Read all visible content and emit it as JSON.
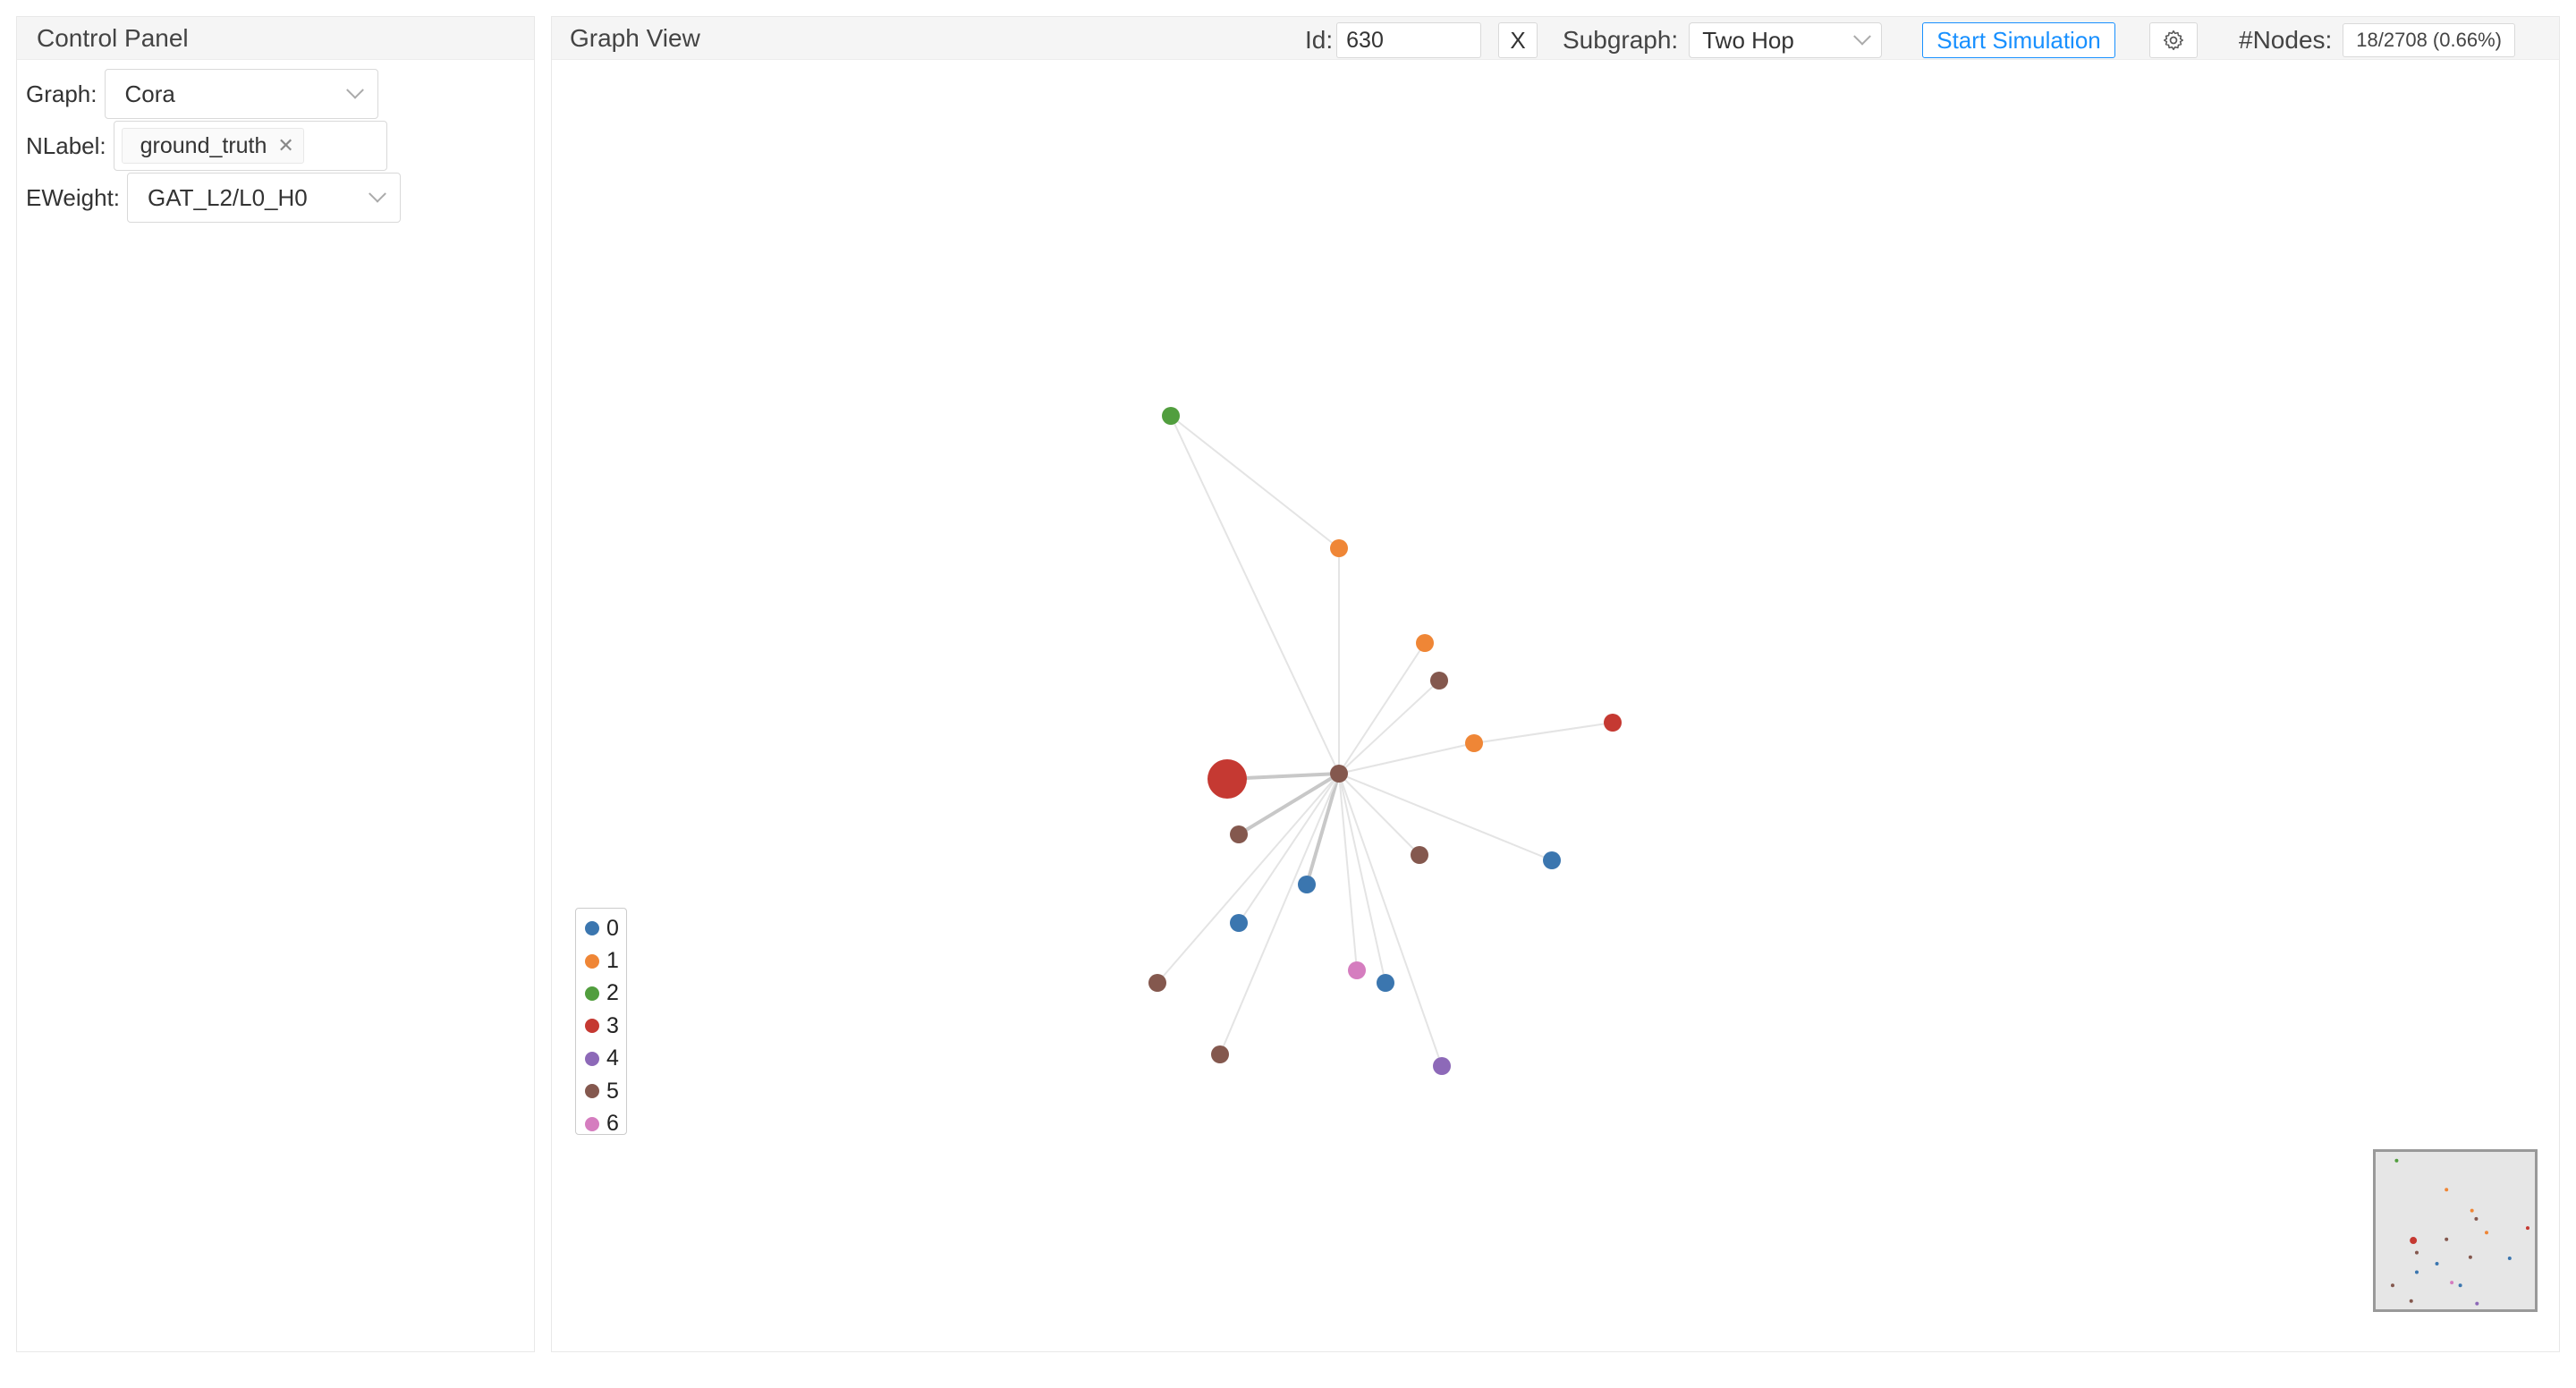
{
  "control_panel": {
    "title": "Control Panel",
    "graph_label": "Graph:",
    "graph_value": "Cora",
    "nlabel_label": "NLabel:",
    "nlabel_tag": "ground_truth",
    "eweight_label": "EWeight:",
    "eweight_value": "GAT_L2/L0_H0"
  },
  "graph_view": {
    "title": "Graph View",
    "id_label": "Id:",
    "id_value": "630",
    "clear_label": "X",
    "subgraph_label": "Subgraph:",
    "subgraph_value": "Two Hop",
    "simulation_label": "Start Simulation",
    "settings_icon": "gear-icon",
    "nodes_label": "#Nodes:",
    "nodes_value": "18/2708 (0.66%)"
  },
  "legend": [
    {
      "label": "0",
      "color": "#3b76af"
    },
    {
      "label": "1",
      "color": "#ef8636"
    },
    {
      "label": "2",
      "color": "#519e3e"
    },
    {
      "label": "3",
      "color": "#c53932"
    },
    {
      "label": "4",
      "color": "#8d69b8"
    },
    {
      "label": "5",
      "color": "#84584e"
    },
    {
      "label": "6",
      "color": "#d57dbf"
    }
  ],
  "graph": {
    "nodes": [
      {
        "id": "center",
        "label": 5
      },
      {
        "id": "n1",
        "label": 3,
        "big": true
      },
      {
        "id": "n2",
        "label": 2
      },
      {
        "id": "n3",
        "label": 1
      },
      {
        "id": "n4",
        "label": 1
      },
      {
        "id": "n5",
        "label": 5
      },
      {
        "id": "n6",
        "label": 1
      },
      {
        "id": "n7",
        "label": 3
      },
      {
        "id": "n8",
        "label": 5
      },
      {
        "id": "n9",
        "label": 5
      },
      {
        "id": "n10",
        "label": 0
      },
      {
        "id": "n11",
        "label": 0
      },
      {
        "id": "n12",
        "label": 0
      },
      {
        "id": "n13",
        "label": 5
      },
      {
        "id": "n14",
        "label": 6
      },
      {
        "id": "n15",
        "label": 0
      },
      {
        "id": "n16",
        "label": 5
      },
      {
        "id": "n17",
        "label": 4
      }
    ],
    "edges": [
      [
        "center",
        "n1"
      ],
      [
        "center",
        "n2"
      ],
      [
        "center",
        "n3"
      ],
      [
        "center",
        "n4"
      ],
      [
        "center",
        "n5"
      ],
      [
        "center",
        "n6"
      ],
      [
        "n6",
        "n7"
      ],
      [
        "center",
        "n8"
      ],
      [
        "center",
        "n9"
      ],
      [
        "center",
        "n10"
      ],
      [
        "center",
        "n11"
      ],
      [
        "center",
        "n12"
      ],
      [
        "center",
        "n13"
      ],
      [
        "center",
        "n14"
      ],
      [
        "center",
        "n15"
      ],
      [
        "center",
        "n16"
      ],
      [
        "center",
        "n17"
      ],
      [
        "n2",
        "n3"
      ]
    ]
  }
}
